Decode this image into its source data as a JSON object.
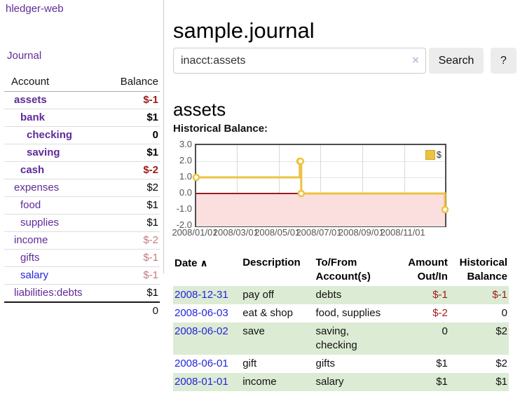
{
  "app": {
    "brand": "hledger-web",
    "nav_journal": "Journal"
  },
  "sidebar": {
    "header": {
      "account": "Account",
      "balance": "Balance"
    },
    "accounts": [
      {
        "name": "assets",
        "depth": 1,
        "bold": true,
        "link_color": "purple",
        "balance": "$-1",
        "balance_style": "bold-neg"
      },
      {
        "name": "bank",
        "depth": 2,
        "bold": true,
        "link_color": "purple",
        "balance": "$1",
        "balance_style": "bold"
      },
      {
        "name": "checking",
        "depth": 3,
        "bold": true,
        "link_color": "purple",
        "balance": "0",
        "balance_style": "bold"
      },
      {
        "name": "saving",
        "depth": 3,
        "bold": true,
        "link_color": "purple",
        "balance": "$1",
        "balance_style": "bold"
      },
      {
        "name": "cash",
        "depth": 2,
        "bold": true,
        "link_color": "purple",
        "balance": "$-2",
        "balance_style": "bold-neg"
      },
      {
        "name": "expenses",
        "depth": 1,
        "bold": false,
        "link_color": "purple",
        "balance": "$2",
        "balance_style": "plain"
      },
      {
        "name": "food",
        "depth": 2,
        "bold": false,
        "link_color": "purple",
        "balance": "$1",
        "balance_style": "plain"
      },
      {
        "name": "supplies",
        "depth": 2,
        "bold": false,
        "link_color": "purple",
        "balance": "$1",
        "balance_style": "plain"
      },
      {
        "name": "income",
        "depth": 1,
        "bold": false,
        "link_color": "purple",
        "balance": "$-2",
        "balance_style": "light-neg"
      },
      {
        "name": "gifts",
        "depth": 2,
        "bold": false,
        "link_color": "purple",
        "balance": "$-1",
        "balance_style": "light-neg"
      },
      {
        "name": "salary",
        "depth": 2,
        "bold": false,
        "link_color": "blue",
        "balance": "$-1",
        "balance_style": "light-neg"
      },
      {
        "name": "liabilities:debts",
        "depth": 1,
        "bold": false,
        "link_color": "purple",
        "balance": "$1",
        "balance_style": "plain"
      }
    ],
    "total": "0"
  },
  "main": {
    "title": "sample.journal",
    "search": {
      "value": "inacct:assets",
      "clear_icon": "×",
      "search_button": "Search",
      "help_button": "?"
    },
    "account_heading": "assets",
    "chart_label": "Historical Balance:"
  },
  "chart_data": {
    "type": "line",
    "title": "Historical Balance",
    "series": [
      {
        "name": "$",
        "color": "#edc240",
        "steps": true,
        "points": [
          {
            "date": "2008-01-01",
            "value": 1
          },
          {
            "date": "2008-06-01",
            "value": 2
          },
          {
            "date": "2008-06-02",
            "value": 2
          },
          {
            "date": "2008-06-03",
            "value": 0
          },
          {
            "date": "2008-12-31",
            "value": -1
          }
        ]
      }
    ],
    "x_range": [
      "2008-01-01",
      "2008-12-31"
    ],
    "x_ticks": [
      "2008/01/01",
      "2008/03/01",
      "2008/05/01",
      "2008/07/01",
      "2008/09/01",
      "2008/11/01"
    ],
    "y_ticks": [
      "3.0",
      "2.0",
      "1.0",
      "0.0",
      "-1.0",
      "-2.0"
    ],
    "ylim": [
      -2,
      3
    ],
    "grid": true,
    "legend_position": "top-right",
    "negative_region_color": "#fbdede",
    "zero_line_color": "#9b1c24"
  },
  "register": {
    "headers": [
      {
        "lines": [
          "Date"
        ],
        "sort_arrow": "∧",
        "align": "left"
      },
      {
        "lines": [
          "Description"
        ],
        "align": "left"
      },
      {
        "lines": [
          "To/From",
          "Account(s)"
        ],
        "align": "left"
      },
      {
        "lines": [
          "Amount",
          "Out/In"
        ],
        "align": "right"
      },
      {
        "lines": [
          "Historical",
          "Balance"
        ],
        "align": "right"
      }
    ],
    "rows": [
      {
        "date": "2008-12-31",
        "description": "pay off",
        "accounts": "debts",
        "amount": "$-1",
        "amount_negative": true,
        "balance": "$-1",
        "balance_negative": true
      },
      {
        "date": "2008-06-03",
        "description": "eat & shop",
        "accounts": "food, supplies",
        "amount": "$-2",
        "amount_negative": true,
        "balance": "0",
        "balance_negative": false
      },
      {
        "date": "2008-06-02",
        "description": "save",
        "accounts": "saving, checking",
        "amount": "0",
        "amount_negative": false,
        "balance": "$2",
        "balance_negative": false
      },
      {
        "date": "2008-06-01",
        "description": "gift",
        "accounts": "gifts",
        "amount": "$1",
        "amount_negative": false,
        "balance": "$2",
        "balance_negative": false
      },
      {
        "date": "2008-01-01",
        "description": "income",
        "accounts": "salary",
        "amount": "$1",
        "amount_negative": false,
        "balance": "$1",
        "balance_negative": false
      }
    ]
  }
}
